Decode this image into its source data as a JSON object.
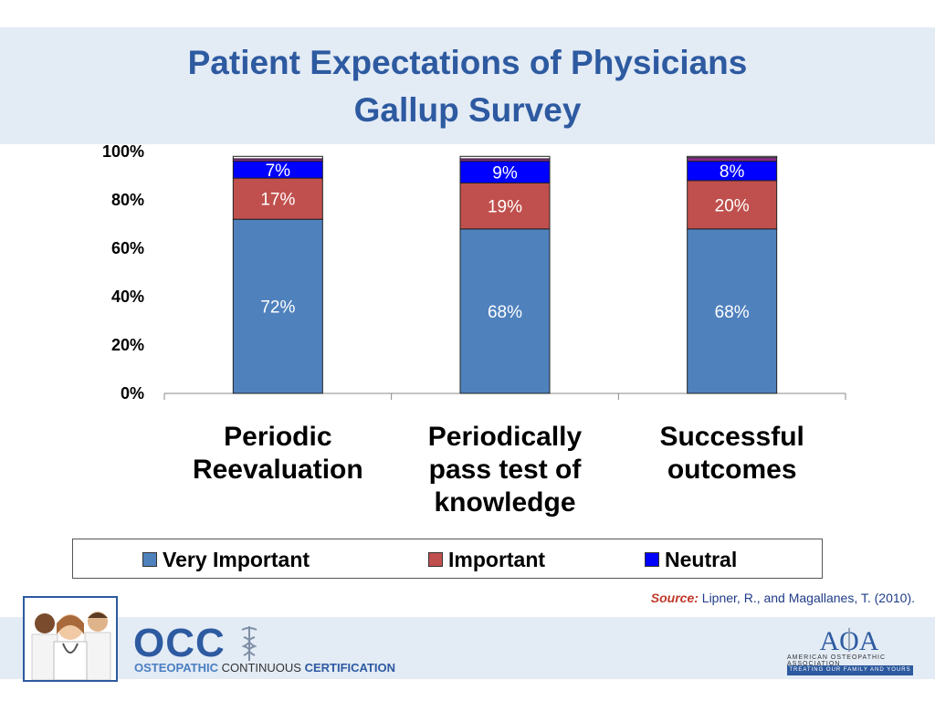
{
  "slide": {
    "title_line1": "Patient Expectations of Physicians",
    "title_line2": "Gallup Survey"
  },
  "colors": {
    "very_important": "#4f81bd",
    "important": "#c0504d",
    "neutral": "#0000ff",
    "unimportant": "#8a2a8a",
    "title": "#2d5aa0",
    "band": "#e3ebf5"
  },
  "chart_data": {
    "type": "bar",
    "stacked": true,
    "categories": [
      [
        "Periodic",
        "Reevaluation"
      ],
      [
        "Periodically",
        "pass test of",
        "knowledge"
      ],
      [
        "Successful",
        "outcomes"
      ]
    ],
    "series": [
      {
        "name": "Very Important",
        "values": [
          72,
          68,
          68
        ],
        "labels": [
          "72%",
          "68%",
          "68%"
        ]
      },
      {
        "name": "Important",
        "values": [
          17,
          19,
          20
        ],
        "labels": [
          "17%",
          "19%",
          "20%"
        ]
      },
      {
        "name": "Neutral",
        "values": [
          7,
          9,
          8
        ],
        "labels": [
          "7%",
          "9%",
          "8%"
        ]
      },
      {
        "name": "",
        "values": [
          1,
          1,
          1.5
        ],
        "labels": [
          "",
          "",
          ""
        ]
      },
      {
        "name": "",
        "values": [
          1,
          1,
          0.5
        ],
        "labels": [
          "",
          "",
          ""
        ]
      }
    ],
    "yticks": [
      "0%",
      "20%",
      "40%",
      "60%",
      "80%",
      "100%"
    ],
    "ylim": [
      0,
      100
    ],
    "legend_position": "bottom",
    "grid": false
  },
  "legend": {
    "very_important": "Very Important",
    "important": "Important",
    "neutral": "Neutral"
  },
  "source": {
    "label": "Source:",
    "text": "Lipner, R., and Magallanes, T.  (2010)."
  },
  "footer": {
    "occ_logo": "OCC",
    "occ_word1": "OSTEOPATHIC",
    "occ_word2": "CONTINUOUS",
    "occ_word3": "CERTIFICATION",
    "aoa_name": "AMERICAN OSTEOPATHIC ASSOCIATION",
    "aoa_tagline": "TREATING OUR FAMILY AND YOURS",
    "aoa_initials": "AOA"
  }
}
